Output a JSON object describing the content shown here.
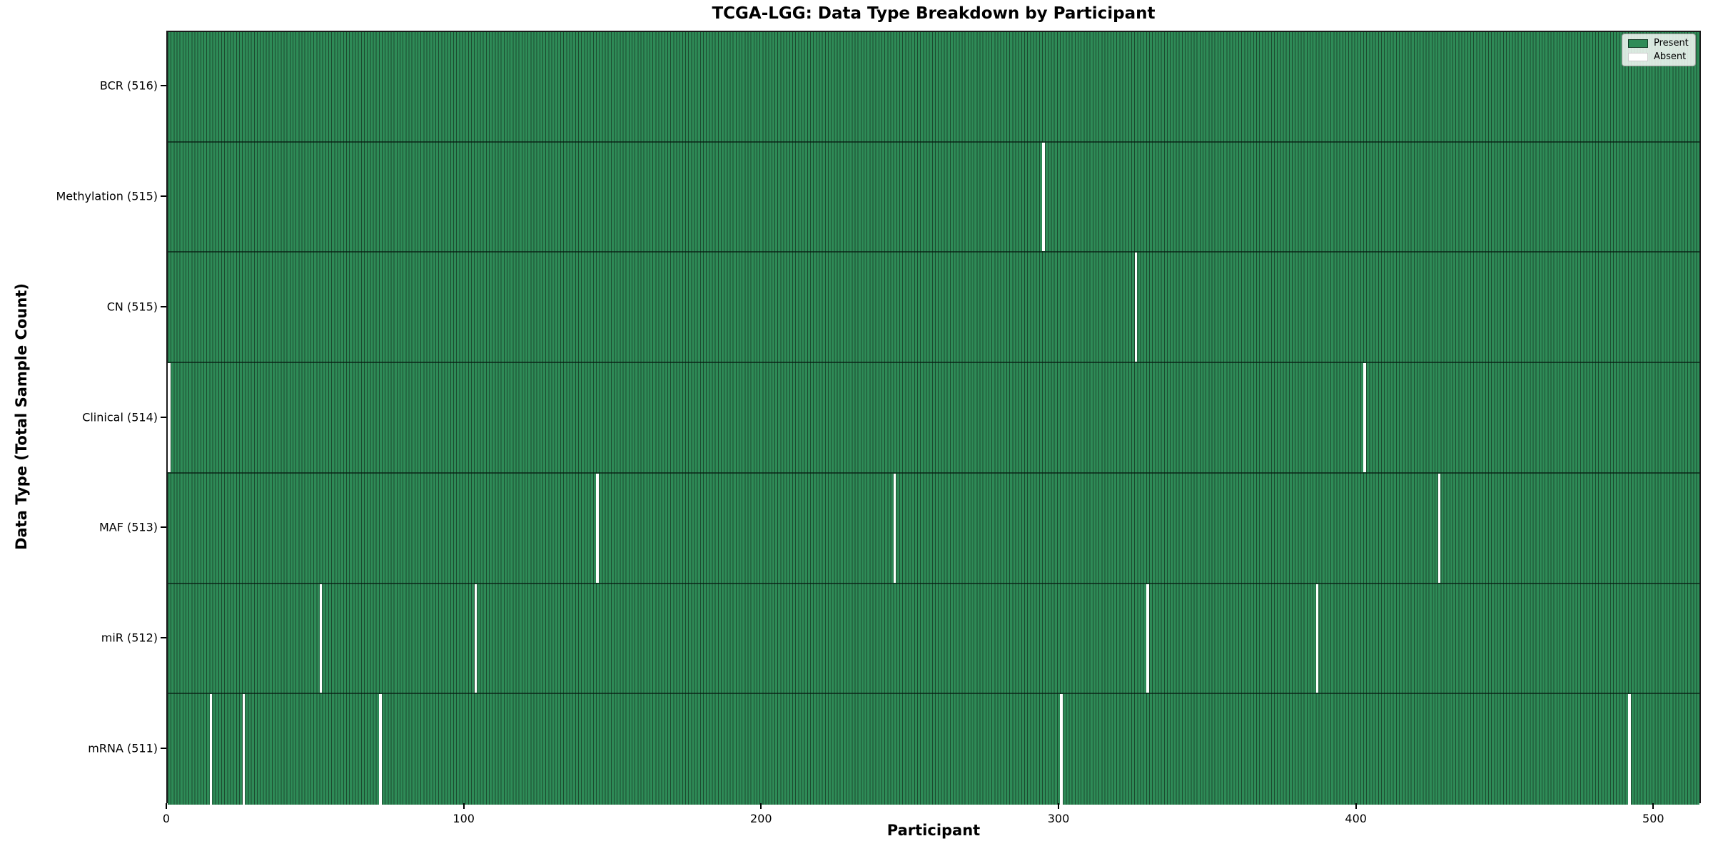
{
  "figure": {
    "kind": "matplotlib-style presence heatmap"
  },
  "colors": {
    "present": "#2e8b57",
    "absent": "#ffffff",
    "bar_edge": "#1c4a2f",
    "frame": "#1a1a1a",
    "legend_border": "#9a9a9a",
    "background": "#ffffff"
  },
  "chart_data": {
    "type": "heatmap",
    "title": "TCGA-LGG: Data Type Breakdown by Participant",
    "xlabel": "Participant",
    "ylabel": "Data Type (Total Sample Count)",
    "x_ticks": [
      0,
      100,
      200,
      300,
      400,
      500
    ],
    "x_range": [
      0,
      516
    ],
    "total_participants": 516,
    "grid": false,
    "legend_position": "upper right",
    "legend_entries": [
      {
        "label": "Present",
        "color_key": "present"
      },
      {
        "label": "Absent",
        "color_key": "absent"
      }
    ],
    "rows": [
      {
        "label": "BCR (516)",
        "data_type": "BCR",
        "present_count": 516,
        "absent_count": 0,
        "absent_participants": []
      },
      {
        "label": "Methylation (515)",
        "data_type": "Methylation",
        "present_count": 515,
        "absent_count": 1,
        "absent_participants": [
          294
        ]
      },
      {
        "label": "CN (515)",
        "data_type": "CN",
        "present_count": 515,
        "absent_count": 1,
        "absent_participants": [
          325
        ]
      },
      {
        "label": "Clinical (514)",
        "data_type": "Clinical",
        "present_count": 514,
        "absent_count": 2,
        "absent_participants": [
          0,
          402
        ]
      },
      {
        "label": "MAF (513)",
        "data_type": "MAF",
        "present_count": 513,
        "absent_count": 3,
        "absent_participants": [
          144,
          244,
          427
        ]
      },
      {
        "label": "miR (512)",
        "data_type": "miR",
        "present_count": 512,
        "absent_count": 4,
        "absent_participants": [
          51,
          103,
          329,
          386
        ]
      },
      {
        "label": "mRNA (511)",
        "data_type": "mRNA",
        "present_count": 511,
        "absent_count": 5,
        "absent_participants": [
          14,
          25,
          71,
          300,
          491
        ]
      }
    ]
  }
}
